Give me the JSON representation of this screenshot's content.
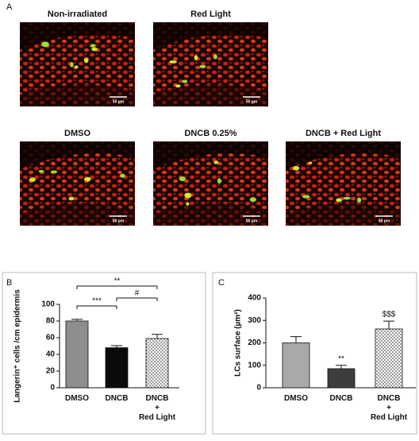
{
  "figure": {
    "panel_a": {
      "label": "A",
      "images": [
        {
          "title": "Non-irradiated",
          "scale_bar": "50 µm"
        },
        {
          "title": "Red Light",
          "scale_bar": "50 µm"
        },
        {
          "title": "DMSO",
          "scale_bar": "50 µm"
        },
        {
          "title": "DNCB 0.25%",
          "scale_bar": "50 µm"
        },
        {
          "title": "DNCB + Red Light",
          "scale_bar": "50 µm"
        }
      ]
    }
  },
  "chart_data": [
    {
      "type": "bar",
      "panel_label": "B",
      "ylabel": "Langerin⁺ cells /cm epidermis",
      "categories": [
        "DMSO",
        "DNCB",
        "DNCB\n+\nRed Light"
      ],
      "values": [
        80,
        48,
        59
      ],
      "errors": [
        2,
        2.5,
        5
      ],
      "colors": [
        "#8e8e8e",
        "#0a0a0a",
        "url(#dots)"
      ],
      "ylim": [
        0,
        100
      ],
      "yticks": [
        0,
        20,
        40,
        60,
        80,
        100
      ],
      "annotations": [
        "**",
        "***",
        "#"
      ]
    },
    {
      "type": "bar",
      "panel_label": "C",
      "ylabel": "LCs surface (µm²)",
      "categories": [
        "DMSO",
        "DNCB",
        "DNCB\n+\nRed Light"
      ],
      "values": [
        200,
        85,
        262
      ],
      "errors": [
        28,
        15,
        35
      ],
      "colors": [
        "#a9a9a9",
        "#3d3d3d",
        "url(#dots)"
      ],
      "ylim": [
        0,
        400
      ],
      "yticks": [
        0,
        100,
        200,
        300,
        400
      ],
      "annotations": [
        "**",
        "$$$"
      ]
    }
  ]
}
